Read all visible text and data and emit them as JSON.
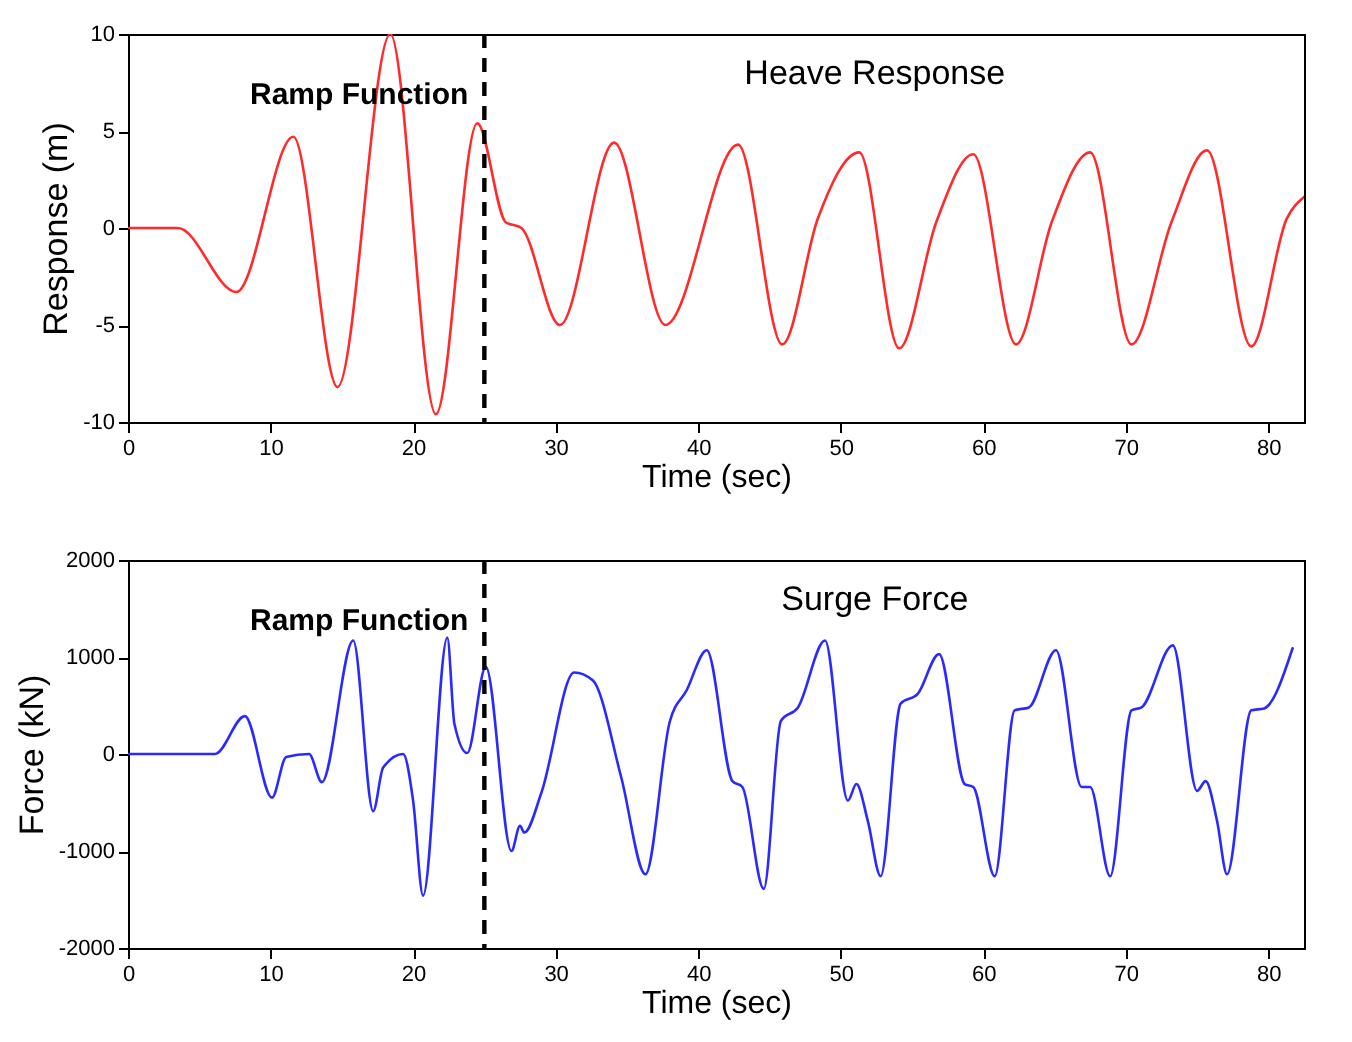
{
  "chart_data": [
    {
      "type": "line",
      "title": "Heave Response",
      "xlabel": "Time (sec)",
      "ylabel": "Response (m)",
      "xlim": [
        0,
        82.5
      ],
      "ylim": [
        -10,
        10
      ],
      "xticks": [
        0,
        10,
        20,
        30,
        40,
        50,
        60,
        70,
        80
      ],
      "yticks": [
        -10,
        -5,
        0,
        5,
        10
      ],
      "grid": false,
      "line_style": "solid",
      "ref_lines": [
        {
          "axis": "x",
          "value": 25,
          "label": "Ramp Function",
          "color": "#000000",
          "line_style": "dashed"
        }
      ],
      "series": [
        {
          "color": "#ff2a2a",
          "x": [
            0,
            3.5,
            7.6,
            11.6,
            14.7,
            18.4,
            21.6,
            24.5,
            26.5,
            27.6,
            30.3,
            34.1,
            37.7,
            42.8,
            45.9,
            48.4,
            51.3,
            54.1,
            56.7,
            59.3,
            62.3,
            64.8,
            67.5,
            70.4,
            73.2,
            75.7,
            78.8,
            81.3,
            82.5
          ],
          "values": [
            0,
            0,
            -3.3,
            4.7,
            -8.2,
            10,
            -9.6,
            5.4,
            0.3,
            0,
            -5.0,
            4.4,
            -5.0,
            4.3,
            -6.0,
            0.5,
            3.9,
            -6.2,
            0.3,
            3.8,
            -6.0,
            0.3,
            3.9,
            -6.0,
            0.3,
            4.0,
            -6.1,
            0.5,
            1.6
          ]
        }
      ]
    },
    {
      "type": "line",
      "title": "Surge Force",
      "xlabel": "Time (sec)",
      "ylabel": "Force (kN)",
      "xlim": [
        0,
        82.5
      ],
      "ylim": [
        -2000,
        2000
      ],
      "xticks": [
        0,
        10,
        20,
        30,
        40,
        50,
        60,
        70,
        80
      ],
      "yticks": [
        -2000,
        -1000,
        0,
        1000,
        2000
      ],
      "grid": false,
      "line_style": "solid",
      "ref_lines": [
        {
          "axis": "x",
          "value": 25,
          "label": "Ramp Function",
          "color": "#000000",
          "line_style": "dashed"
        }
      ],
      "series": [
        {
          "color": "#2a2aff",
          "x": [
            0,
            6.1,
            8.2,
            10.1,
            11.1,
            12.7,
            13.6,
            15.8,
            17.2,
            17.9,
            19.3,
            20.0,
            20.7,
            22.4,
            22.9,
            23.8,
            25.1,
            26.9,
            27.5,
            27.8,
            29.0,
            31.3,
            32.6,
            34.6,
            36.3,
            38.0,
            39.2,
            40.6,
            42.4,
            43.1,
            44.6,
            45.8,
            47.0,
            48.9,
            50.5,
            51.1,
            51.9,
            52.8,
            54.2,
            55.4,
            56.9,
            58.7,
            59.3,
            60.8,
            62.2,
            63.2,
            65.1,
            66.9,
            67.5,
            68.9,
            70.4,
            71.1,
            73.3,
            75.0,
            75.6,
            76.4,
            77.1,
            78.8,
            79.7,
            81.7
          ],
          "values": [
            0,
            0,
            390,
            -450,
            -30,
            0,
            -290,
            1170,
            -590,
            -140,
            0,
            -480,
            -1460,
            1200,
            310,
            10,
            900,
            -1000,
            -740,
            -810,
            -400,
            840,
            760,
            -240,
            -1240,
            330,
            660,
            1070,
            -280,
            -340,
            -1390,
            340,
            480,
            1170,
            -480,
            -310,
            -690,
            -1260,
            520,
            620,
            1030,
            -310,
            -340,
            -1260,
            450,
            480,
            1070,
            -340,
            -340,
            -1260,
            450,
            480,
            1120,
            -380,
            -280,
            -690,
            -1240,
            450,
            470,
            1090
          ]
        }
      ]
    }
  ]
}
